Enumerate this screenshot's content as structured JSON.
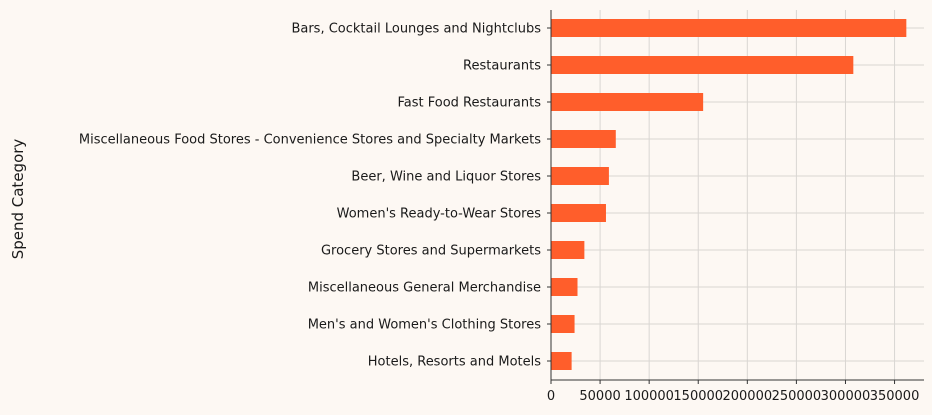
{
  "chart_data": {
    "type": "bar",
    "orientation": "horizontal",
    "title": "",
    "xlabel": "",
    "ylabel": "Spend Category",
    "xlim": [
      0,
      380000
    ],
    "xticks": [
      0,
      50000,
      100000,
      150000,
      200000,
      250000,
      300000,
      350000
    ],
    "xtick_labels": [
      "0",
      "50000",
      "100000",
      "150000",
      "200000",
      "250000",
      "300000",
      "350000"
    ],
    "grid": true,
    "categories": [
      "Bars, Cocktail Lounges and Nightclubs",
      "Restaurants",
      "Fast Food Restaurants",
      "Miscellaneous Food Stores - Convenience Stores and Specialty Markets",
      "Beer, Wine and Liquor Stores",
      "Women's Ready-to-Wear Stores",
      "Grocery Stores and Supermarkets",
      "Miscellaneous General Merchandise",
      "Men's and Women's Clothing Stores",
      "Hotels, Resorts and Motels"
    ],
    "values": [
      362000,
      308000,
      155000,
      66000,
      59000,
      56000,
      34000,
      27000,
      24000,
      21000
    ],
    "colors": {
      "bar": "#ff5e2b",
      "background": "#fdf8f3",
      "grid": "#d9d6d2",
      "axis": "#333333",
      "text": "#1a1a1a"
    }
  }
}
